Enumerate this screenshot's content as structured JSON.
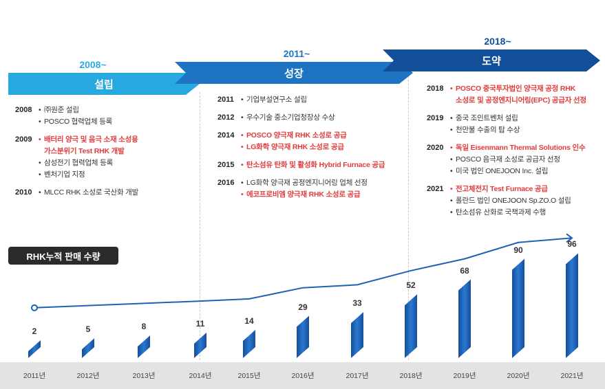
{
  "phases": [
    {
      "year": "2008~",
      "label": "설립",
      "year_color": "#28a9e0",
      "arrow_color": "#28a9e0"
    },
    {
      "year": "2011~",
      "label": "성장",
      "year_color": "#1e74c2",
      "arrow_color": "#1e74c2"
    },
    {
      "year": "2018~",
      "label": "도약",
      "year_color": "#134f98",
      "arrow_color": "#134f98"
    }
  ],
  "col1": [
    {
      "year": "2008",
      "items": [
        {
          "text": "㈜원준 설립",
          "red": false
        },
        {
          "text": "POSCO 협력업체 등록",
          "red": false
        }
      ]
    },
    {
      "year": "2009",
      "items": [
        {
          "text": "배터리 양극 및 음극 소재 소성용",
          "red": true
        },
        {
          "text": "가스분위기 Test RHK 개발",
          "red": true,
          "cont": true
        },
        {
          "text": "삼성전기 협력업체 등록",
          "red": false
        },
        {
          "text": "벤처기업 지정",
          "red": false
        }
      ]
    },
    {
      "year": "2010",
      "items": [
        {
          "text": "MLCC RHK 소성로 국산화 개발",
          "red": false
        }
      ]
    }
  ],
  "col2": [
    {
      "year": "2011",
      "items": [
        {
          "text": "기업부설연구소 설립",
          "red": false
        }
      ]
    },
    {
      "year": "2012",
      "items": [
        {
          "text": "우수기술 중소기업청장상 수상",
          "red": false
        }
      ]
    },
    {
      "year": "2014",
      "items": [
        {
          "text": "POSCO 양극재 RHK 소성로 공급",
          "red": true
        },
        {
          "text": "LG화학 양극재 RHK 소성로 공급",
          "red": true
        }
      ]
    },
    {
      "year": "2015",
      "items": [
        {
          "text": "탄소섬유 탄화 및 활성화 Hybrid Furnace 공급",
          "red": true
        }
      ]
    },
    {
      "year": "2016",
      "items": [
        {
          "text": "LG화학 양극재 공정엔지니어링 업체 선정",
          "red": false
        },
        {
          "text": "에코프로비엠 양극재  RHK 소성로 공급",
          "red": true
        }
      ]
    }
  ],
  "col3": [
    {
      "year": "2018",
      "items": [
        {
          "text": "POSCO 중국투자법인 양극재 공정 RHK",
          "red": true
        },
        {
          "text": "소성로 및 공정엔지니어링(EPC) 공급자 선정",
          "red": true,
          "cont": true
        }
      ]
    },
    {
      "year": "2019",
      "items": [
        {
          "text": "중국 조인트벤처 설립",
          "red": false
        },
        {
          "text": "천만불 수출의 탑 수상",
          "red": false
        }
      ]
    },
    {
      "year": "2020",
      "items": [
        {
          "text": "독일 Eisenmann Thermal Solutions 인수",
          "red": true
        },
        {
          "text": "POSCO 음극재 소성로 공급자 선정",
          "red": false
        },
        {
          "text": "미국 법인 ONEJOON Inc. 설립",
          "red": false
        }
      ]
    },
    {
      "year": "2021",
      "items": [
        {
          "text": "전고체전지 Test Furnace 공급",
          "red": true
        },
        {
          "text": "폴란드 법인 ONEJOON Sp.ZO.O 설립",
          "red": false
        },
        {
          "text": "탄소섬유 산화로 국책과제 수행",
          "red": false
        }
      ]
    }
  ],
  "chart_badge": "RHK누적 판매 수량",
  "chart_data": {
    "type": "bar",
    "categories": [
      "2011년",
      "2012년",
      "2013년",
      "2014년",
      "2015년",
      "2016년",
      "2017년",
      "2018년",
      "2019년",
      "2020년",
      "2021년"
    ],
    "values": [
      2,
      5,
      8,
      11,
      14,
      29,
      33,
      52,
      68,
      90,
      96
    ],
    "bar_color": "#1b62b3",
    "line_color": "#1b62b3",
    "ylim": [
      0,
      100
    ]
  }
}
